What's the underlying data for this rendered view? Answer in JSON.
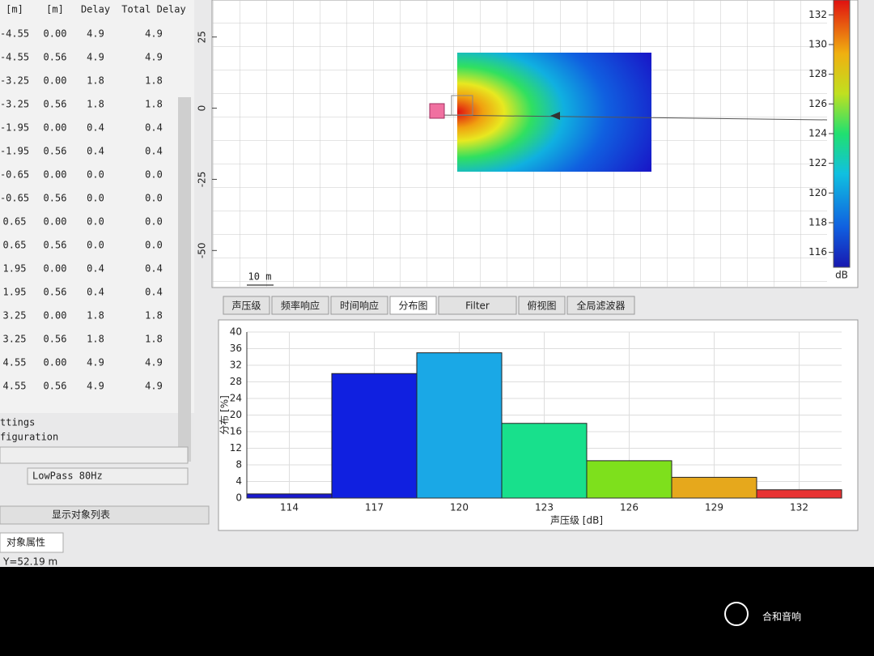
{
  "table": {
    "header": [
      "[m]",
      "[m]",
      "Delay",
      "Total Delay"
    ],
    "rows": [
      [
        "-4.55",
        "0.00",
        "4.9",
        "4.9"
      ],
      [
        "-4.55",
        "0.56",
        "4.9",
        "4.9"
      ],
      [
        "-3.25",
        "0.00",
        "1.8",
        "1.8"
      ],
      [
        "-3.25",
        "0.56",
        "1.8",
        "1.8"
      ],
      [
        "-1.95",
        "0.00",
        "0.4",
        "0.4"
      ],
      [
        "-1.95",
        "0.56",
        "0.4",
        "0.4"
      ],
      [
        "-0.65",
        "0.00",
        "0.0",
        "0.0"
      ],
      [
        "-0.65",
        "0.56",
        "0.0",
        "0.0"
      ],
      [
        "0.65",
        "0.00",
        "0.0",
        "0.0"
      ],
      [
        "0.65",
        "0.56",
        "0.0",
        "0.0"
      ],
      [
        "1.95",
        "0.00",
        "0.4",
        "0.4"
      ],
      [
        "1.95",
        "0.56",
        "0.4",
        "0.4"
      ],
      [
        "3.25",
        "0.00",
        "1.8",
        "1.8"
      ],
      [
        "3.25",
        "0.56",
        "1.8",
        "1.8"
      ],
      [
        "4.55",
        "0.00",
        "4.9",
        "4.9"
      ],
      [
        "4.55",
        "0.56",
        "4.9",
        "4.9"
      ]
    ]
  },
  "left_panel": {
    "section": "ttings",
    "configuration": "figuration",
    "filter": "LowPass 80Hz",
    "button": "显示对象列表",
    "tab": "对象属性",
    "status": "Y=52.19 m"
  },
  "map": {
    "ylim": [
      38,
      -63
    ],
    "yticks": [
      25,
      0,
      -25,
      -50
    ],
    "scale_bar": "10 m",
    "colorbar": {
      "lim": [
        133,
        115
      ],
      "ticks": [
        132,
        130,
        128,
        126,
        124,
        122,
        120,
        118,
        116
      ],
      "unit": "dB"
    }
  },
  "tabs": [
    "声压级",
    "频率响应",
    "时间响应",
    "分布图",
    "Filter",
    "俯视图",
    "全局滤波器"
  ],
  "chart_data": {
    "type": "histogram",
    "x_label": "声压级 [dB]",
    "y_label": "分布 [%]",
    "bins": [
      112.5,
      115.5,
      118.5,
      121.5,
      124.5,
      127.5,
      130.5,
      133.5
    ],
    "values": [
      1,
      30,
      35,
      18,
      9,
      5,
      2
    ],
    "colors": [
      "#1a1ad0",
      "#1020e0",
      "#1aa8e6",
      "#18e08c",
      "#7ee01c",
      "#e6a81c",
      "#e83232"
    ],
    "xlim": [
      112.5,
      133.5
    ],
    "xticks": [
      114,
      117,
      120,
      123,
      126,
      129,
      132
    ],
    "ylim": [
      0,
      40
    ],
    "yticks": [
      0,
      4,
      8,
      12,
      16,
      20,
      24,
      28,
      32,
      36,
      40
    ],
    "grid": true
  },
  "watermark": "合和音响"
}
